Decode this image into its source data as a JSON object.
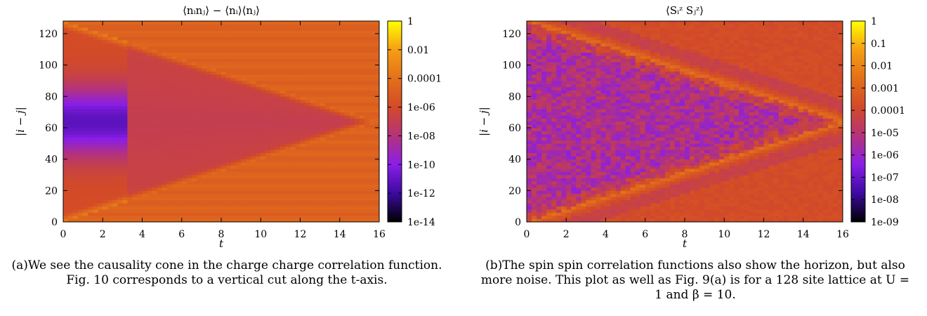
{
  "chart_data": [
    {
      "type": "heatmap",
      "title": "⟨nᵢnⱼ⟩ − ⟨nᵢ⟩⟨nⱼ⟩",
      "xlabel": "t",
      "ylabel": "|i − j|",
      "xlim": [
        0,
        16
      ],
      "ylim": [
        0,
        128
      ],
      "x_ticks": [
        "0",
        "2",
        "4",
        "6",
        "8",
        "10",
        "12",
        "14",
        "16"
      ],
      "y_ticks": [
        "0",
        "20",
        "40",
        "60",
        "80",
        "100",
        "120"
      ],
      "log_scale": true,
      "colorbar_range": [
        1e-14,
        1
      ],
      "colorbar_ticks": [
        "1",
        "0.01",
        "0.0001",
        "1e-06",
        "1e-08",
        "1e-10",
        "1e-12",
        "1e-14"
      ],
      "grid": false,
      "caption": "(a)We see the causality cone in the charge charge correlation function. Fig. 10 corresponds to a vertical cut along the t-axis."
    },
    {
      "type": "heatmap",
      "title": "⟨Sᵢᶻ Sⱼᶻ⟩",
      "xlabel": "t",
      "ylabel": "|i − j|",
      "xlim": [
        0,
        16
      ],
      "ylim": [
        0,
        128
      ],
      "x_ticks": [
        "0",
        "2",
        "4",
        "6",
        "8",
        "10",
        "12",
        "14",
        "16"
      ],
      "y_ticks": [
        "0",
        "20",
        "40",
        "60",
        "80",
        "100",
        "120"
      ],
      "log_scale": true,
      "colorbar_range": [
        1e-09,
        1
      ],
      "colorbar_ticks": [
        "1",
        "0.1",
        "0.01",
        "0.001",
        "0.0001",
        "1e-05",
        "1e-06",
        "1e-07",
        "1e-08",
        "1e-09"
      ],
      "grid": false,
      "caption": "(b)The spin spin correlation functions also show the horizon, but also more noise. This plot as well as Fig. 9(a) is for a 128 site lattice at U = 1 and β = 10."
    }
  ],
  "colors": {
    "colormap": [
      "#000000",
      "#3c0aa0",
      "#8a1ee6",
      "#b4337a",
      "#d24a28",
      "#e3701a",
      "#f59e14",
      "#ffff00"
    ]
  }
}
